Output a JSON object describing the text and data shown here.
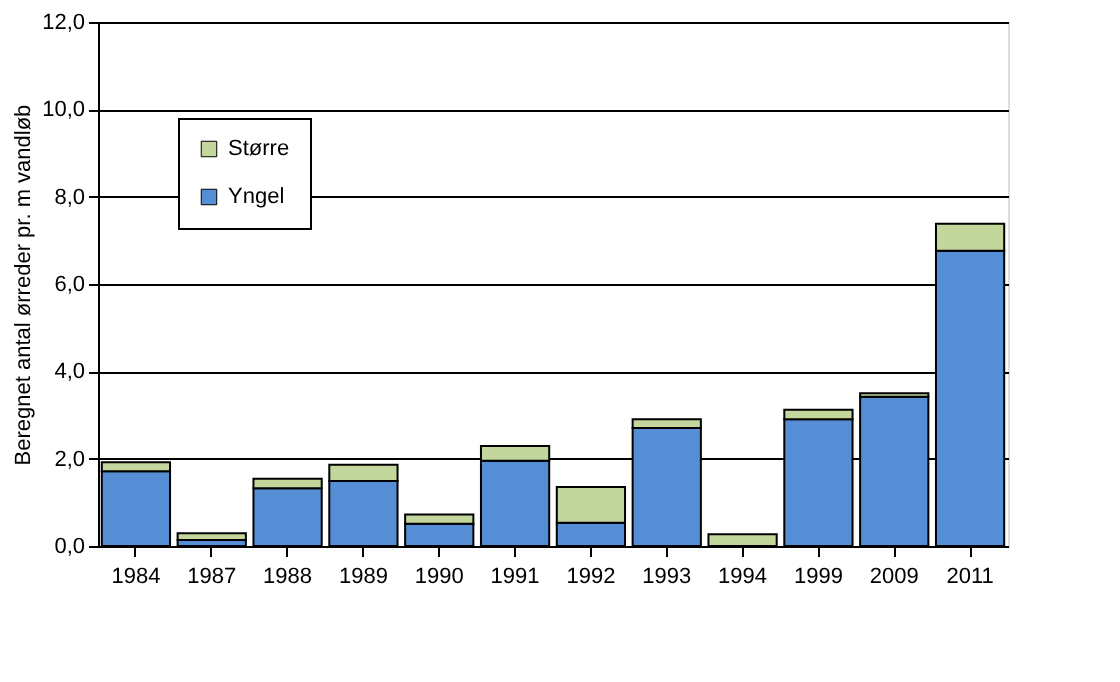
{
  "chart_data": {
    "type": "bar",
    "stacked": true,
    "ylabel": "Beregnet antal ørreder pr. m vandløb",
    "categories": [
      "1984",
      "1987",
      "1988",
      "1989",
      "1990",
      "1991",
      "1992",
      "1993",
      "1994",
      "1999",
      "2009",
      "2011"
    ],
    "series": [
      {
        "name": "Yngel",
        "color": "#558ed5",
        "values": [
          1.71,
          0.14,
          1.32,
          1.49,
          0.51,
          1.95,
          0.53,
          2.7,
          null,
          2.9,
          3.42,
          6.76
        ]
      },
      {
        "name": "Større",
        "color": "#c3d69b",
        "values": [
          0.21,
          0.15,
          0.22,
          0.37,
          0.21,
          0.34,
          0.82,
          0.2,
          0.27,
          0.22,
          0.08,
          0.62
        ]
      }
    ],
    "ylim": [
      0,
      12
    ],
    "yticks": [
      {
        "value": 0,
        "label": "0,0"
      },
      {
        "value": 2,
        "label": "2,0"
      },
      {
        "value": 4,
        "label": "4,0"
      },
      {
        "value": 6,
        "label": "6,0"
      },
      {
        "value": 8,
        "label": "8,0"
      },
      {
        "value": 10,
        "label": "10,0"
      },
      {
        "value": 12,
        "label": "12,0"
      }
    ],
    "grid": "y",
    "legend": "top left"
  }
}
